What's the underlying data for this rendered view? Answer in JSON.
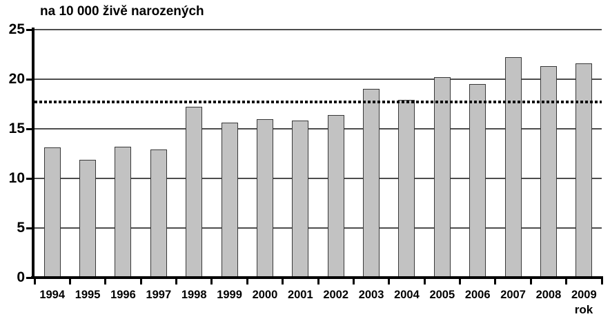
{
  "chart_data": {
    "type": "bar",
    "title": "na 10 000 živě narozených",
    "xlabel": "rok",
    "ylabel": "",
    "categories": [
      "1994",
      "1995",
      "1996",
      "1997",
      "1998",
      "1999",
      "2000",
      "2001",
      "2002",
      "2003",
      "2004",
      "2005",
      "2006",
      "2007",
      "2008",
      "2009"
    ],
    "values": [
      13.1,
      11.9,
      13.2,
      12.9,
      17.2,
      15.6,
      16.0,
      15.8,
      16.4,
      19.0,
      17.9,
      20.2,
      19.5,
      22.2,
      21.3,
      21.6
    ],
    "reference_line_value": 17.7,
    "ylim": [
      0,
      25
    ],
    "yticks": [
      0,
      5,
      10,
      15,
      20,
      25
    ],
    "grid": true,
    "legend": "none",
    "colors": {
      "bar_fill": "#c2c2c2",
      "bar_border": "#383838",
      "axis": "#000000",
      "gridline": "#4d4d4d",
      "reference_line": "#0d0d0d",
      "text": "#000000",
      "background": "#ffffff"
    }
  }
}
